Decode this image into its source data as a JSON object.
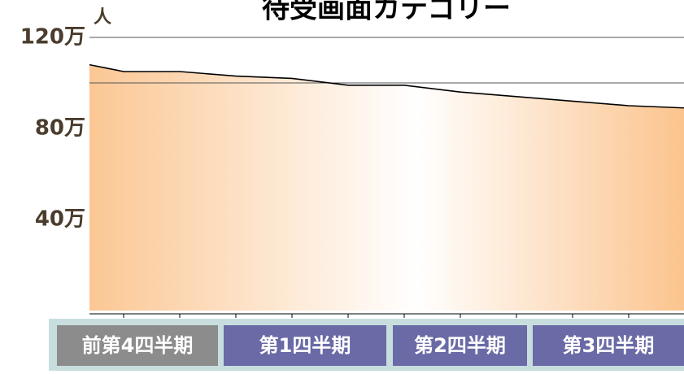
{
  "chart_data": {
    "type": "area",
    "title": "待受画面カテゴリー",
    "y_label": "人",
    "values": [
      108,
      105,
      105,
      103,
      102,
      99,
      99,
      96,
      94,
      92,
      90,
      89
    ],
    "ylim": [
      0,
      120
    ],
    "yticks": [
      {
        "value": 40,
        "label": "40万"
      },
      {
        "value": 80,
        "label": "80万"
      },
      {
        "value": 120,
        "label": "120万"
      }
    ],
    "grid_lines": [
      100,
      120
    ],
    "color": "#000000"
  },
  "tabs": [
    "前第4四半期",
    "第1四半期",
    "第2四半期",
    "第3四半期"
  ]
}
